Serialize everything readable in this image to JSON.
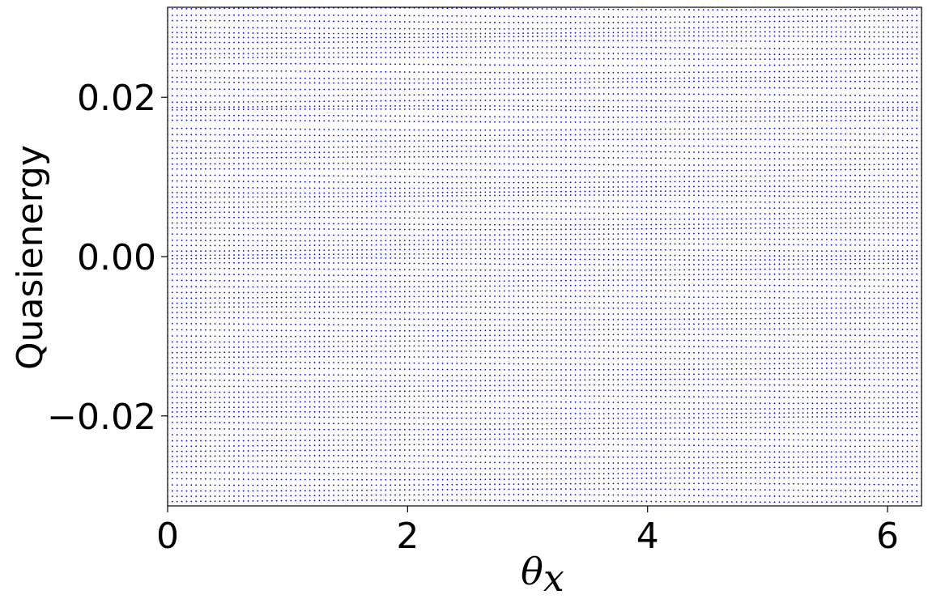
{
  "chart_data": {
    "type": "scatter",
    "xlabel": "θ",
    "xlabel_subscript": "x",
    "ylabel": "Quasienergy",
    "xlim": [
      0,
      6.2832
    ],
    "ylim": [
      -0.0313,
      0.0313
    ],
    "x_ticks": [
      0,
      2,
      4,
      6
    ],
    "x_tick_labels": [
      "0",
      "2",
      "4",
      "6"
    ],
    "y_ticks": [
      -0.02,
      0.0,
      0.02
    ],
    "y_tick_labels": [
      "−0.02",
      "0.00",
      "0.02"
    ],
    "grid": false,
    "marker_color": "#0000ff",
    "x_sample_count": 160,
    "levels": [
      0.0311,
      0.0302,
      0.0295,
      0.0287,
      0.0281,
      0.0276,
      0.027,
      0.0262,
      0.0255,
      0.0249,
      0.0241,
      0.0232,
      0.0224,
      0.0219,
      0.0211,
      0.0203,
      0.0195,
      0.0188,
      0.0184,
      0.0176,
      0.017,
      0.016,
      0.0153,
      0.0146,
      0.0138,
      0.0131,
      0.0124,
      0.0116,
      0.0109,
      0.0101,
      0.0094,
      0.0087,
      0.0081,
      0.0076,
      0.0069,
      0.0062,
      0.0055,
      0.0048,
      0.0041,
      0.0035,
      0.0028,
      0.0021,
      0.0015,
      0.0008,
      0.0002,
      -0.0003,
      -0.0009,
      -0.0016,
      -0.0023,
      -0.003,
      -0.0037,
      -0.0044,
      -0.0051,
      -0.0058,
      -0.0064,
      -0.0071,
      -0.0078,
      -0.0085,
      -0.0092,
      -0.0099,
      -0.0106,
      -0.0113,
      -0.012,
      -0.0127,
      -0.0134,
      -0.0141,
      -0.0148,
      -0.0155,
      -0.0162,
      -0.0169,
      -0.0176,
      -0.0183,
      -0.019,
      -0.0196,
      -0.0202,
      -0.0209,
      -0.0216,
      -0.0223,
      -0.023,
      -0.0237,
      -0.0244,
      -0.0251,
      -0.0258,
      -0.0265,
      -0.0272,
      -0.0279,
      -0.0286,
      -0.0293,
      -0.03,
      -0.0307
    ]
  }
}
